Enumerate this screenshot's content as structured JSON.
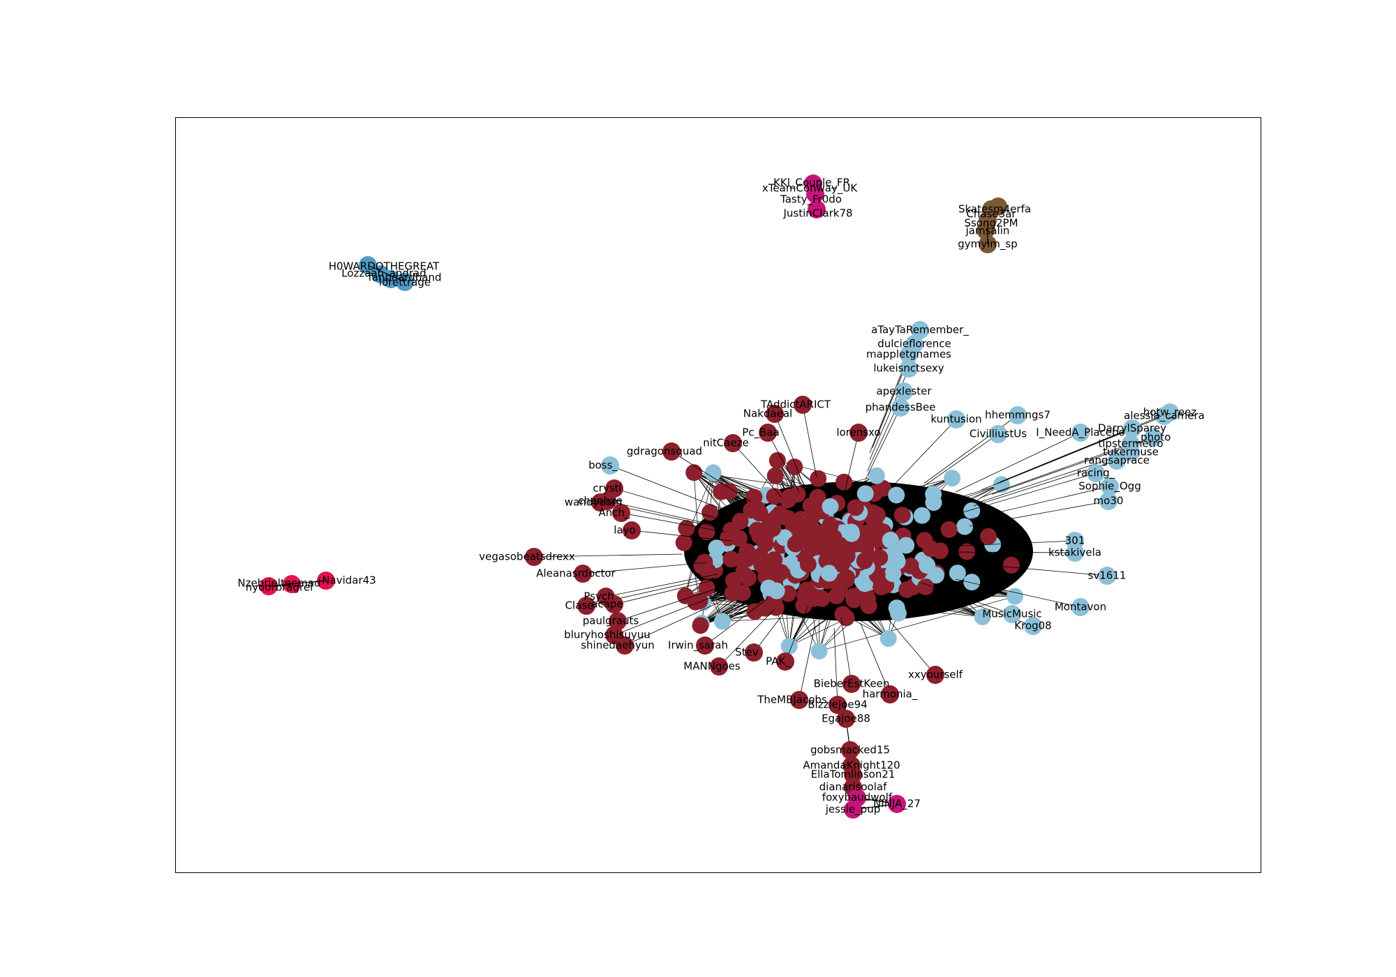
{
  "colors": {
    "dark_red": "#8b1f2b",
    "light_blue": "#8cc0d8",
    "mid_blue": "#4f9ac8",
    "magenta": "#c8147a",
    "crimson": "#e0134a",
    "brown": "#7a5a36",
    "edge": "#000000"
  },
  "labels": {
    "justinclark": "JustinClark78",
    "tasty": "Tasty_Fr0do",
    "kkl": "KKl_Couple_FR",
    "xfern": "xTeamConway_UK",
    "ssong": "Ssong2PM",
    "jamsalin": "jamsalin",
    "gymyim": "gymyim_sp",
    "chasebar": "Chase3ar",
    "skate": "Skatesm4erfa",
    "howard": "H0WARDOTHEGREAT",
    "lozz": "Lozzaah_andrad",
    "fanboard": "fanboardband",
    "loretterage": "lorettrage",
    "navidar": "Navidar43",
    "nzebriel": "Nzebrielteemad",
    "nyoorbrag": "nyoorbragrel",
    "atay": "aTayTaRemember_",
    "dulcie": "dulcieflorence",
    "mapple": "mappletgnames",
    "lukeis": "lukeisnctsexy",
    "apex": "apexlester",
    "phandess": "phandessBee",
    "kuntusion": "kuntusion",
    "hhemmngs": "hhemmngs7",
    "alessia": "alessia_camera",
    "hotw": "hotw_reez",
    "darryl": "DarrylSparey",
    "photo": "_photo",
    "tipster": "tipstermetro",
    "civilliust": "CivilliustUs",
    "ineed": "I_NeedA_Placebo",
    "tukermuse": "tukermuse",
    "ranjane": "rangsaprace",
    "parcel": "parcelI",
    "racing": "racing_",
    "sophie": "Sophie_Ogg",
    "mo30": "mo30",
    "r301": "301",
    "kstakivela": "kstakivela",
    "sv1611": "sv1611",
    "montavon": "Montavon",
    "krog": "Krog08",
    "music": "MusicMusic",
    "boss": "boss_",
    "gdragon": "gdragonsquad",
    "nak": "Nakdaeal",
    "taddict": "TAddictARICT",
    "nitc": "nitCaeze",
    "pcb": "Pc_Baa",
    "lorens": "lorensxo",
    "cryst": "crystl",
    "cheng": "chenhxe",
    "wand": "wandyeom",
    "anch": "Anch_",
    "layo": "layo",
    "veg": "vegasobeatsdrexx",
    "aleana": "Aleanasrdoctor",
    "psych": "Psych",
    "clase": "Clase",
    "acab": "acape",
    "paulg": "paulgrauts",
    "blury": "bluryhoshisuyuu",
    "shine": "shinedaehyun",
    "irwin": "Irwin_sarah",
    "manning": "MANNgoes",
    "stev": "Stev",
    "pak": "PAK_",
    "xxyour": "xxyourself",
    "bieber": "BieberEstKeen",
    "harmonia": "harmonia_",
    "themb": "TheMBJacobs",
    "bizzle": "BizzleJoe94",
    "egajoe": "Egajoe88",
    "gobsmacked": "gobsmacked15",
    "amanda": "AmandaKnight120",
    "ella": "EllaTomlinson21",
    "diana": "dianarisoolaf",
    "foxy": "foxybaudwolf",
    "ninja": "NINJA_27",
    "jessie": "jessie_pup"
  }
}
